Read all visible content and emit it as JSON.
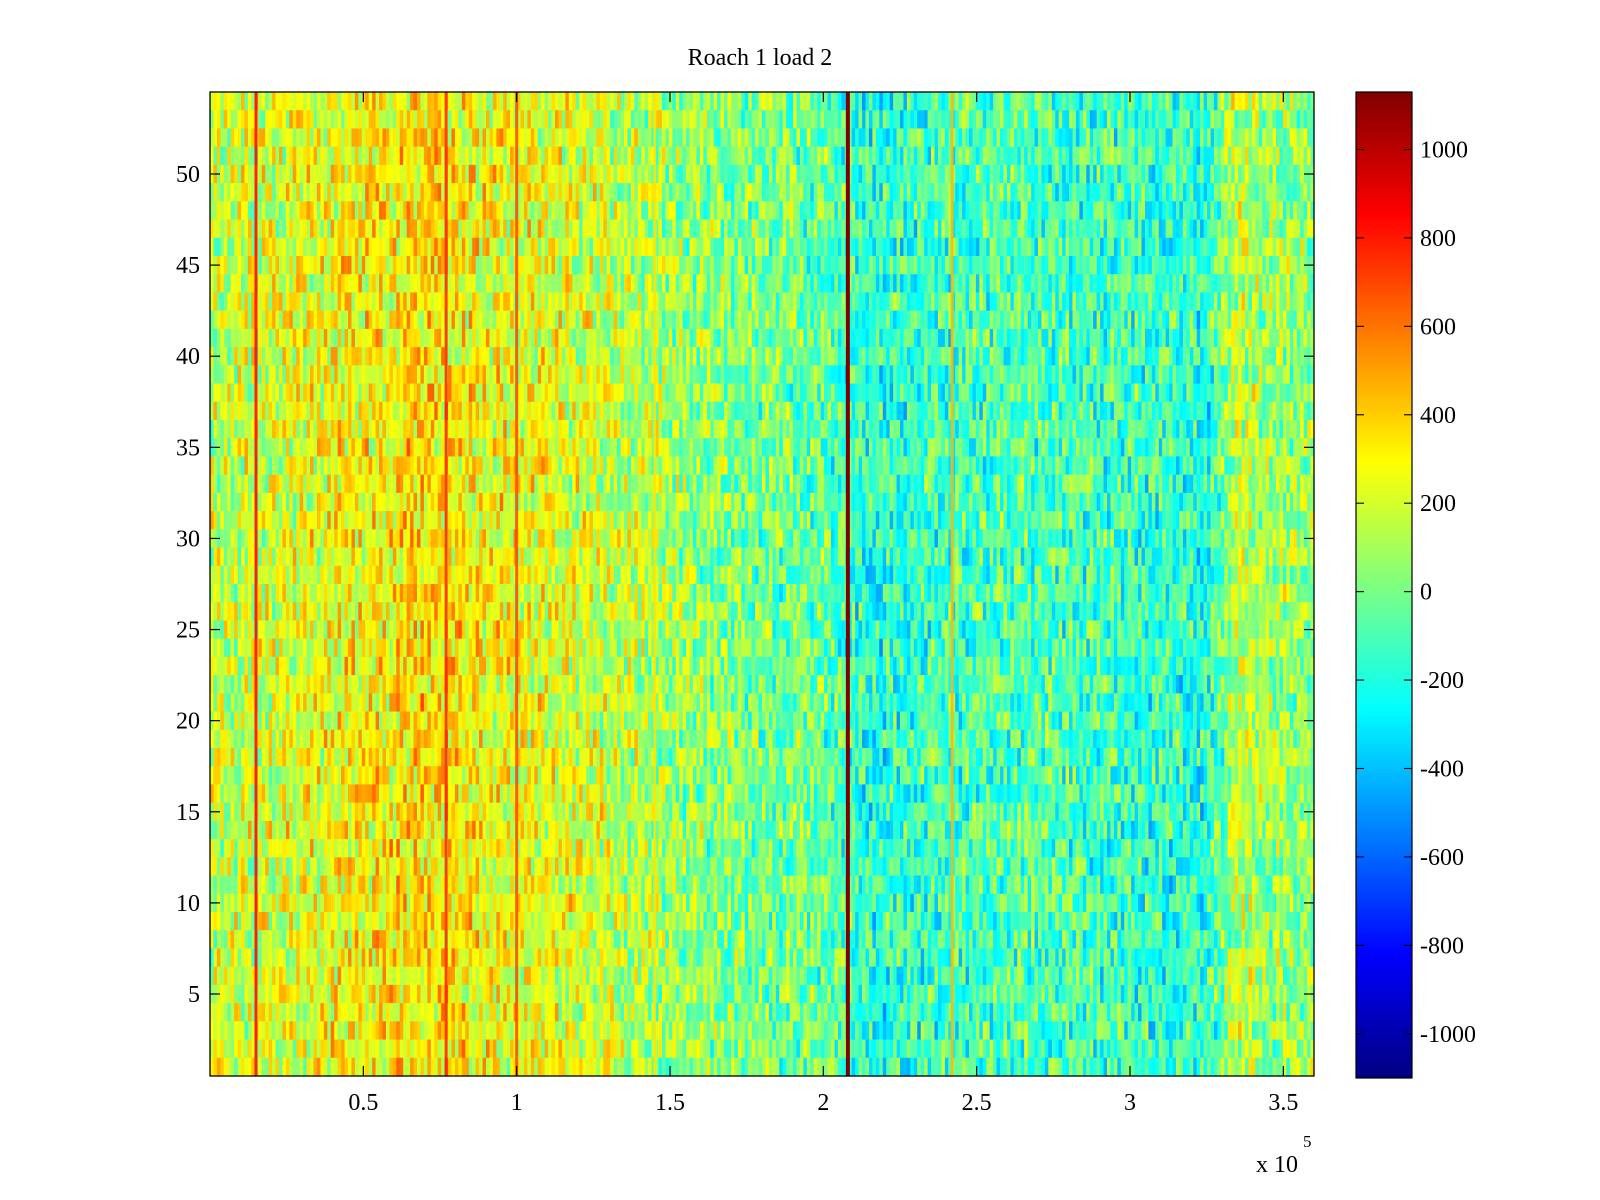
{
  "chart_data": {
    "type": "heatmap",
    "title": "Roach 1 load 2",
    "xlabel": "",
    "ylabel": "",
    "x_exponent_label": "x 10",
    "x_exponent_power": "5",
    "xlim": [
      0,
      360000
    ],
    "ylim": [
      0.5,
      54.5
    ],
    "x_ticks": [
      50000,
      100000,
      150000,
      200000,
      250000,
      300000,
      350000
    ],
    "x_tick_labels": [
      "0.5",
      "1",
      "1.5",
      "2",
      "2.5",
      "3",
      "3.5"
    ],
    "y_ticks": [
      5,
      10,
      15,
      20,
      25,
      30,
      35,
      40,
      45,
      50
    ],
    "y_tick_labels": [
      "5",
      "10",
      "15",
      "20",
      "25",
      "30",
      "35",
      "40",
      "45",
      "50"
    ],
    "rows": 54,
    "colorbar": {
      "colormap": "jet",
      "clim": [
        -1100,
        1130
      ],
      "ticks": [
        1000,
        800,
        600,
        400,
        200,
        0,
        -200,
        -400,
        -600,
        -800,
        -1000
      ],
      "tick_labels": [
        "1000",
        "800",
        "600",
        "400",
        "200",
        "0",
        "-200",
        "-400",
        "-600",
        "-800",
        "-1000"
      ]
    },
    "column_profile": [
      [
        0,
        150
      ],
      [
        10000,
        180
      ],
      [
        30000,
        230
      ],
      [
        50000,
        300
      ],
      [
        70000,
        350
      ],
      [
        90000,
        290
      ],
      [
        110000,
        240
      ],
      [
        130000,
        180
      ],
      [
        150000,
        80
      ],
      [
        170000,
        20
      ],
      [
        200000,
        -40
      ],
      [
        215000,
        -180
      ],
      [
        240000,
        -120
      ],
      [
        260000,
        -80
      ],
      [
        290000,
        -120
      ],
      [
        325000,
        -180
      ],
      [
        335000,
        170
      ],
      [
        345000,
        80
      ],
      [
        360000,
        60
      ]
    ],
    "vertical_features": [
      {
        "x": 15000,
        "value": 850
      },
      {
        "x": 77000,
        "value": 780
      },
      {
        "x": 100000,
        "value": 700
      },
      {
        "x": 208000,
        "value": 1130
      },
      {
        "x": 242000,
        "value": 450
      },
      {
        "x": 145000,
        "value": 350
      }
    ]
  }
}
